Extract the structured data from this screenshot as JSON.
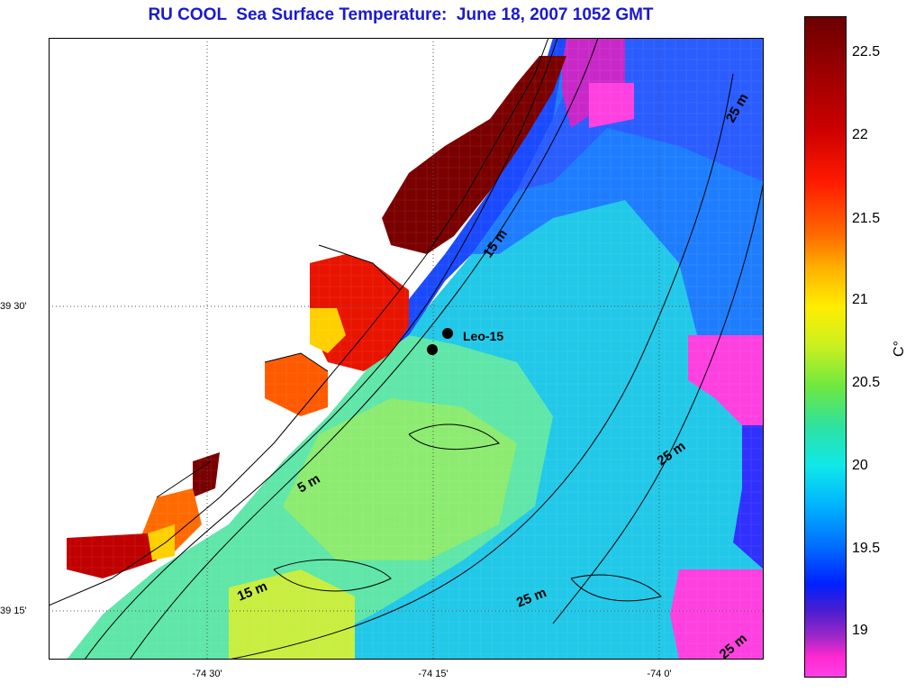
{
  "title": "RU COOL  Sea Surface Temperature:  June 18, 2007 1052 GMT",
  "axes": {
    "longitude_labels": [
      "-74 30'",
      "-74 15'",
      "-74 0'"
    ],
    "latitude_labels": [
      "39 30'",
      "39 15'"
    ]
  },
  "colorbar": {
    "unit": "C°",
    "tick_labels": [
      "22.5",
      "22",
      "21.5",
      "21",
      "20.5",
      "20",
      "19.5",
      "19"
    ],
    "range_c": [
      18.7,
      22.7
    ]
  },
  "annotations": {
    "station_label": "Leo-15",
    "depth_contours": [
      "25 m",
      "15 m",
      "5 m",
      "25 m",
      "15 m",
      "25 m",
      "25 m"
    ]
  },
  "legend_colors": {
    "hot": "#7a0000",
    "warm": "#ff3000",
    "mild": "#ffd000",
    "neutral": "#30e0e0",
    "cool": "#0050ff",
    "cold": "#ff40e0"
  }
}
